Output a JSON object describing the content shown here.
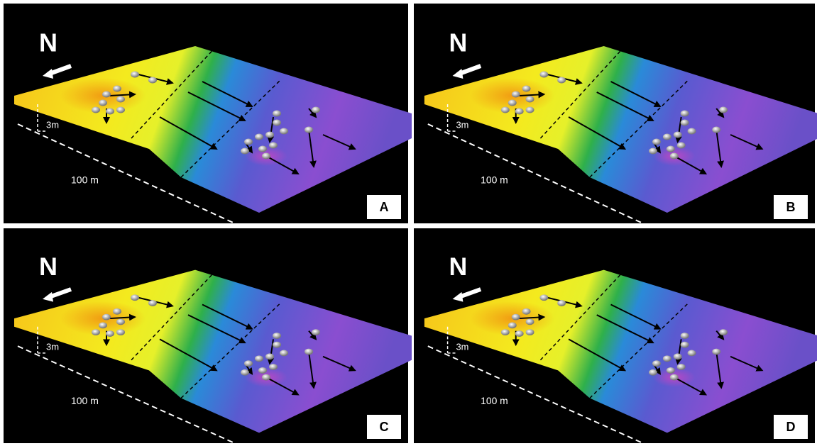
{
  "panels": [
    {
      "north": "N",
      "height": "3m",
      "distance": "100 m",
      "label": "A"
    },
    {
      "north": "N",
      "height": "3m",
      "distance": "100 m",
      "label": "B"
    },
    {
      "north": "N",
      "height": "3m",
      "distance": "100 m",
      "label": "C"
    },
    {
      "north": "N",
      "height": "3m",
      "distance": "100 m",
      "label": "D"
    }
  ]
}
